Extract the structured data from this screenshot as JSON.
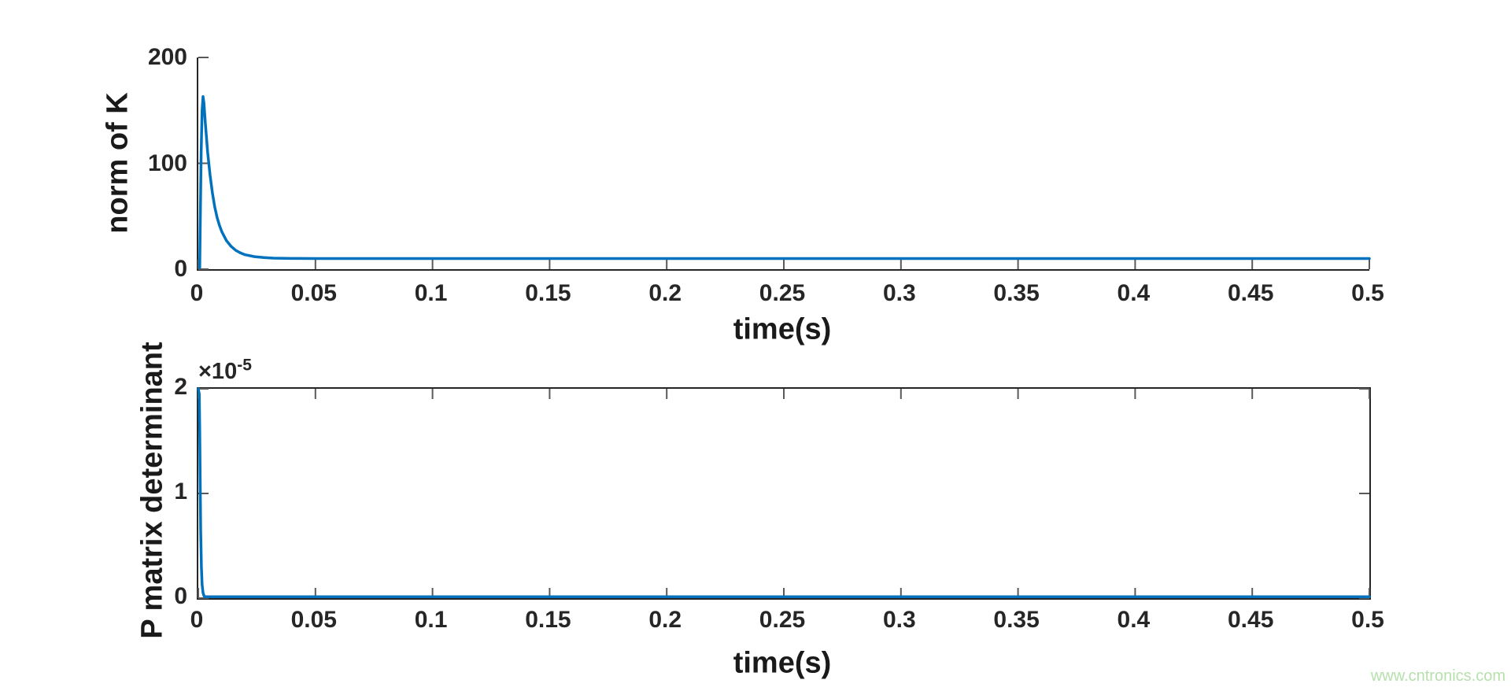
{
  "figure": {
    "watermark": "www.cntronics.com",
    "background": "#ffffff",
    "line_color": "#0072BD",
    "axis_color": "#262626",
    "tick_color": "#595959",
    "watermark_color": "#b6e0ac"
  },
  "chart_data": [
    {
      "type": "line",
      "title": "",
      "xlabel": "time(s)",
      "ylabel": "norm of K",
      "xlim": [
        0,
        0.5
      ],
      "ylim": [
        0,
        200
      ],
      "x_ticks": [
        0,
        0.05,
        0.1,
        0.15,
        0.2,
        0.25,
        0.3,
        0.35,
        0.4,
        0.45,
        0.5
      ],
      "x_tick_labels": [
        "0",
        "0.05",
        "0.1",
        "0.15",
        "0.2",
        "0.25",
        "0.3",
        "0.35",
        "0.4",
        "0.45",
        "0.5"
      ],
      "y_ticks": [
        0,
        100,
        200
      ],
      "y_tick_labels": [
        "0",
        "100",
        "200"
      ],
      "box": false,
      "grid": false,
      "legend": null,
      "line_color": "#0072BD",
      "series": [
        {
          "name": "norm of K",
          "points": [
            [
              0.0006,
              0
            ],
            [
              0.0008,
              40
            ],
            [
              0.0012,
              110
            ],
            [
              0.0016,
              150
            ],
            [
              0.002,
              163
            ],
            [
              0.0024,
              157
            ],
            [
              0.003,
              138
            ],
            [
              0.004,
              110
            ],
            [
              0.005,
              89
            ],
            [
              0.006,
              72
            ],
            [
              0.007,
              59
            ],
            [
              0.008,
              49
            ],
            [
              0.009,
              41.5
            ],
            [
              0.01,
              35.5
            ],
            [
              0.012,
              27
            ],
            [
              0.014,
              21.5
            ],
            [
              0.016,
              17.8
            ],
            [
              0.018,
              15.3
            ],
            [
              0.02,
              13.6
            ],
            [
              0.024,
              11.8
            ],
            [
              0.028,
              10.9
            ],
            [
              0.032,
              10.4
            ],
            [
              0.04,
              10.1
            ],
            [
              0.05,
              10
            ],
            [
              0.1,
              10
            ],
            [
              0.15,
              10
            ],
            [
              0.2,
              10
            ],
            [
              0.25,
              10
            ],
            [
              0.3,
              10
            ],
            [
              0.35,
              10
            ],
            [
              0.4,
              10
            ],
            [
              0.45,
              10
            ],
            [
              0.5,
              10
            ]
          ]
        }
      ]
    },
    {
      "type": "line",
      "title": "",
      "xlabel": "time(s)",
      "ylabel": "P matrix determinant",
      "xlim": [
        0,
        0.5
      ],
      "ylim": [
        0,
        2
      ],
      "y_scale": {
        "base": "×10",
        "exponent": "-5",
        "note": "y values are in units of 10^-5"
      },
      "x_ticks": [
        0,
        0.05,
        0.1,
        0.15,
        0.2,
        0.25,
        0.3,
        0.35,
        0.4,
        0.45,
        0.5
      ],
      "x_tick_labels": [
        "0",
        "0.05",
        "0.1",
        "0.15",
        "0.2",
        "0.25",
        "0.3",
        "0.35",
        "0.4",
        "0.45",
        "0.5"
      ],
      "y_ticks": [
        0,
        1,
        2
      ],
      "y_tick_labels": [
        "0",
        "1",
        "2"
      ],
      "box": true,
      "grid": false,
      "legend": null,
      "line_color": "#0072BD",
      "series": [
        {
          "name": "P matrix determinant",
          "points": [
            [
              0,
              2.0
            ],
            [
              0.0004,
              1.95
            ],
            [
              0.0006,
              1.6
            ],
            [
              0.0008,
              1.1
            ],
            [
              0.001,
              0.65
            ],
            [
              0.0013,
              0.3
            ],
            [
              0.0016,
              0.13
            ],
            [
              0.002,
              0.05
            ],
            [
              0.0025,
              0.018
            ],
            [
              0.003,
              0.007
            ],
            [
              0.004,
              0.001
            ],
            [
              0.005,
              0
            ],
            [
              0.01,
              0
            ],
            [
              0.05,
              0
            ],
            [
              0.1,
              0
            ],
            [
              0.15,
              0
            ],
            [
              0.2,
              0
            ],
            [
              0.25,
              0
            ],
            [
              0.3,
              0
            ],
            [
              0.35,
              0
            ],
            [
              0.4,
              0
            ],
            [
              0.45,
              0
            ],
            [
              0.5,
              0
            ]
          ]
        }
      ]
    }
  ]
}
